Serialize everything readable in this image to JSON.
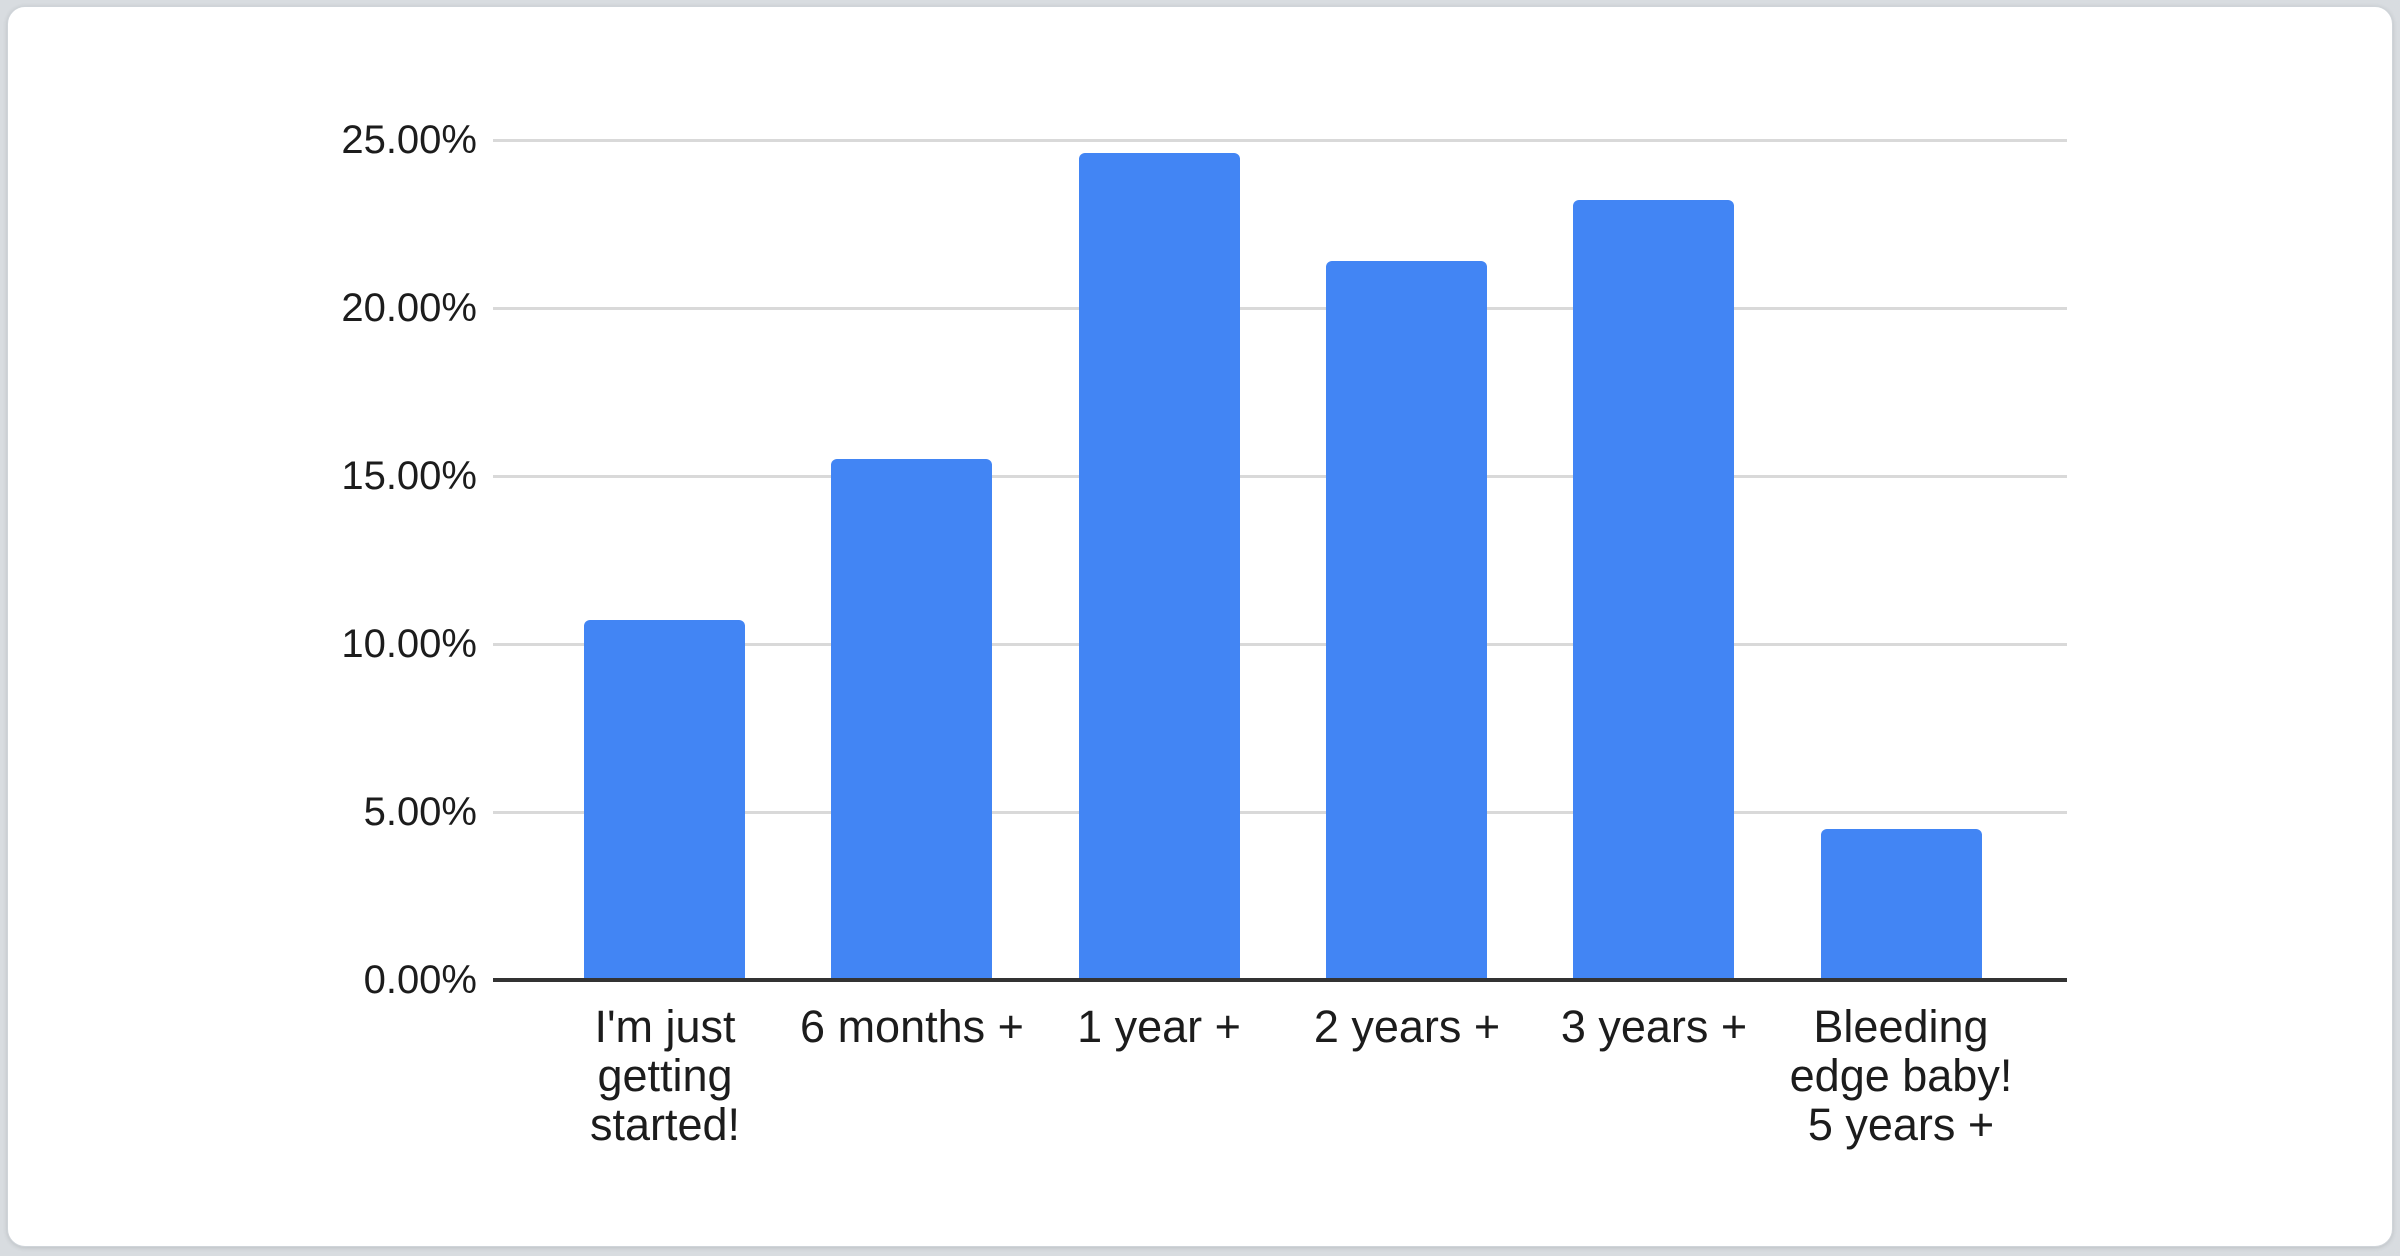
{
  "page": {
    "background_color": "#d8dce0",
    "card_background_color": "#ffffff"
  },
  "chart_data": {
    "type": "bar",
    "title": "",
    "xlabel": "",
    "ylabel": "",
    "categories": [
      "I'm just\ngetting\nstarted!",
      "6 months +",
      "1 year +",
      "2 years +",
      "3 years +",
      "Bleeding\nedge baby!\n5 years +"
    ],
    "values": [
      10.7,
      15.5,
      24.6,
      21.4,
      23.2,
      4.5
    ],
    "value_unit": "%",
    "ylim": [
      0,
      25
    ],
    "ytick_labels": [
      "0.00%",
      "5.00%",
      "10.00%",
      "15.00%",
      "20.00%",
      "25.00%"
    ],
    "ytick_values": [
      0,
      5,
      10,
      15,
      20,
      25
    ],
    "grid": true,
    "legend": "none",
    "bar_color": "#4285f4",
    "gridline_color": "#d9d9d9",
    "axis_line_color": "#333333",
    "text_color": "#1c1c1c"
  }
}
